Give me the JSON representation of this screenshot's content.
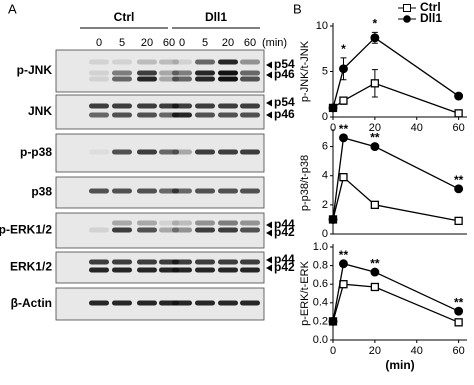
{
  "panel_a": {
    "label": "A",
    "groups": [
      "Ctrl",
      "Dll1"
    ],
    "times": [
      "0",
      "5",
      "20",
      "60",
      "0",
      "5",
      "20",
      "60"
    ],
    "time_unit": "(min)",
    "rows": [
      {
        "label": "p-JNK",
        "markers": [
          "p54",
          "p46"
        ]
      },
      {
        "label": "JNK",
        "markers": [
          "p54",
          "p46"
        ]
      },
      {
        "label": "p-p38",
        "markers": []
      },
      {
        "label": "p38",
        "markers": []
      },
      {
        "label": "p-ERK1/2",
        "markers": [
          "p44",
          "p42"
        ]
      },
      {
        "label": "ERK1/2",
        "markers": [
          "p44",
          "p42"
        ]
      },
      {
        "label": "β-Actin",
        "markers": []
      }
    ]
  },
  "panel_b_label": "B",
  "chart_data": [
    {
      "type": "line",
      "ylabel": "p-JNK/t-JNK",
      "x": [
        0,
        5,
        20,
        60
      ],
      "xlim": [
        0,
        64
      ],
      "xticks": [
        0,
        20,
        40,
        60
      ],
      "ylim": [
        0,
        10
      ],
      "yticks": [
        0,
        5,
        10
      ],
      "series": [
        {
          "name": "Ctrl",
          "color": "#000000",
          "marker": "square",
          "values": [
            1,
            1.8,
            3.7,
            0.4
          ],
          "errors": [
            null,
            0.4,
            1.5,
            null
          ]
        },
        {
          "name": "Dll1",
          "color": "#000000",
          "marker": "circle",
          "values": [
            1,
            5.3,
            8.7,
            2.3
          ],
          "errors": [
            null,
            1.2,
            0.6,
            null
          ]
        }
      ],
      "annotations": [
        {
          "text": "*",
          "x": 5
        },
        {
          "text": "*",
          "x": 20
        }
      ]
    },
    {
      "type": "line",
      "ylabel": "p-p38/t-p38",
      "x": [
        0,
        5,
        20,
        60
      ],
      "xlim": [
        0,
        64
      ],
      "ylim": [
        0,
        7
      ],
      "yticks": [
        0,
        2,
        4,
        6
      ],
      "series": [
        {
          "color": "#000000",
          "marker": "square",
          "values": [
            1,
            3.9,
            2,
            0.9
          ]
        },
        {
          "color": "#000000",
          "marker": "circle",
          "values": [
            1,
            6.6,
            6,
            3.1
          ]
        }
      ],
      "annotations": [
        {
          "text": "**",
          "x": 5
        },
        {
          "text": "**",
          "x": 20
        },
        {
          "text": "**",
          "x": 60
        }
      ]
    },
    {
      "type": "line",
      "ylabel": "p-ERK/t-ERK",
      "xlabel": "(min)",
      "x": [
        0,
        5,
        20,
        60
      ],
      "xlim": [
        0,
        64
      ],
      "xticks": [
        0,
        20,
        40,
        60
      ],
      "ylim": [
        0,
        1
      ],
      "yticks": [
        {
          "value": 0,
          "label": "0.0"
        },
        {
          "value": 0.2,
          "label": "0.2"
        },
        {
          "value": 0.4,
          "label": "0.4"
        },
        {
          "value": 0.6,
          "label": "0.6"
        },
        {
          "value": 0.8,
          "label": "0.8"
        },
        {
          "value": 1,
          "label": "1.0"
        }
      ],
      "series": [
        {
          "color": "#000000",
          "marker": "square",
          "values": [
            0.2,
            0.6,
            0.57,
            0.19
          ]
        },
        {
          "color": "#000000",
          "marker": "circle",
          "values": [
            0.2,
            0.82,
            0.73,
            0.31
          ]
        }
      ],
      "annotations": [
        {
          "text": "**",
          "x": 5
        },
        {
          "text": "**",
          "x": 20
        },
        {
          "text": "**",
          "x": 60
        }
      ]
    }
  ]
}
